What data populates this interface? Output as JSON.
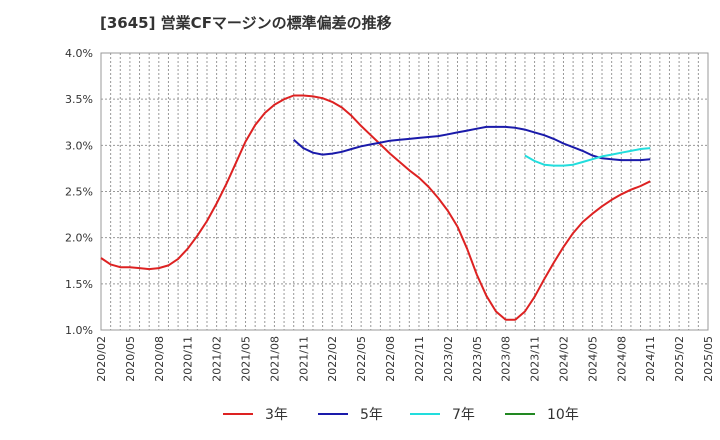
{
  "chart_data": {
    "type": "line",
    "title": "[3645]  営業CFマージンの標準偏差の推移",
    "xlabel": "",
    "ylabel": "",
    "ylim": [
      1.0,
      4.0
    ],
    "y_ticks": [
      "1.0%",
      "1.5%",
      "2.0%",
      "2.5%",
      "3.0%",
      "3.5%",
      "4.0%"
    ],
    "x_ticks": [
      "2020/02",
      "2020/05",
      "2020/08",
      "2020/11",
      "2021/02",
      "2021/05",
      "2021/08",
      "2021/11",
      "2022/02",
      "2022/05",
      "2022/08",
      "2022/11",
      "2023/02",
      "2023/05",
      "2023/08",
      "2023/11",
      "2024/02",
      "2024/05",
      "2024/08",
      "2024/11",
      "2025/02",
      "2025/05"
    ],
    "grid": true,
    "legend_position": "bottom",
    "series": [
      {
        "name": "3年",
        "color": "#dd2222",
        "points": [
          [
            "2020/02",
            1.78
          ],
          [
            "2020/03",
            1.71
          ],
          [
            "2020/04",
            1.68
          ],
          [
            "2020/05",
            1.68
          ],
          [
            "2020/06",
            1.67
          ],
          [
            "2020/07",
            1.66
          ],
          [
            "2020/08",
            1.67
          ],
          [
            "2020/09",
            1.7
          ],
          [
            "2020/10",
            1.77
          ],
          [
            "2020/11",
            1.88
          ],
          [
            "2020/12",
            2.02
          ],
          [
            "2021/01",
            2.18
          ],
          [
            "2021/02",
            2.37
          ],
          [
            "2021/03",
            2.58
          ],
          [
            "2021/04",
            2.81
          ],
          [
            "2021/05",
            3.04
          ],
          [
            "2021/06",
            3.22
          ],
          [
            "2021/07",
            3.35
          ],
          [
            "2021/08",
            3.44
          ],
          [
            "2021/09",
            3.5
          ],
          [
            "2021/10",
            3.54
          ],
          [
            "2021/11",
            3.54
          ],
          [
            "2021/12",
            3.53
          ],
          [
            "2022/01",
            3.51
          ],
          [
            "2022/02",
            3.47
          ],
          [
            "2022/03",
            3.41
          ],
          [
            "2022/04",
            3.32
          ],
          [
            "2022/05",
            3.21
          ],
          [
            "2022/06",
            3.11
          ],
          [
            "2022/07",
            3.01
          ],
          [
            "2022/08",
            2.91
          ],
          [
            "2022/09",
            2.82
          ],
          [
            "2022/10",
            2.73
          ],
          [
            "2022/11",
            2.65
          ],
          [
            "2022/12",
            2.55
          ],
          [
            "2023/01",
            2.43
          ],
          [
            "2023/02",
            2.29
          ],
          [
            "2023/03",
            2.12
          ],
          [
            "2023/04",
            1.88
          ],
          [
            "2023/05",
            1.6
          ],
          [
            "2023/06",
            1.37
          ],
          [
            "2023/07",
            1.2
          ],
          [
            "2023/08",
            1.11
          ],
          [
            "2023/09",
            1.11
          ],
          [
            "2023/10",
            1.2
          ],
          [
            "2023/11",
            1.36
          ],
          [
            "2023/12",
            1.55
          ],
          [
            "2024/01",
            1.73
          ],
          [
            "2024/02",
            1.9
          ],
          [
            "2024/03",
            2.05
          ],
          [
            "2024/04",
            2.17
          ],
          [
            "2024/05",
            2.26
          ],
          [
            "2024/06",
            2.34
          ],
          [
            "2024/07",
            2.41
          ],
          [
            "2024/08",
            2.47
          ],
          [
            "2024/09",
            2.52
          ],
          [
            "2024/10",
            2.56
          ],
          [
            "2024/11",
            2.61
          ]
        ]
      },
      {
        "name": "5年",
        "color": "#1a1aaa",
        "points": [
          [
            "2021/10",
            3.06
          ],
          [
            "2021/11",
            2.97
          ],
          [
            "2021/12",
            2.92
          ],
          [
            "2022/01",
            2.9
          ],
          [
            "2022/02",
            2.91
          ],
          [
            "2022/03",
            2.93
          ],
          [
            "2022/04",
            2.96
          ],
          [
            "2022/05",
            2.99
          ],
          [
            "2022/06",
            3.01
          ],
          [
            "2022/07",
            3.03
          ],
          [
            "2022/08",
            3.05
          ],
          [
            "2022/09",
            3.06
          ],
          [
            "2022/10",
            3.07
          ],
          [
            "2022/11",
            3.08
          ],
          [
            "2022/12",
            3.09
          ],
          [
            "2023/01",
            3.1
          ],
          [
            "2023/02",
            3.12
          ],
          [
            "2023/03",
            3.14
          ],
          [
            "2023/04",
            3.16
          ],
          [
            "2023/05",
            3.18
          ],
          [
            "2023/06",
            3.2
          ],
          [
            "2023/07",
            3.2
          ],
          [
            "2023/08",
            3.2
          ],
          [
            "2023/09",
            3.19
          ],
          [
            "2023/10",
            3.17
          ],
          [
            "2023/11",
            3.14
          ],
          [
            "2023/12",
            3.11
          ],
          [
            "2024/01",
            3.07
          ],
          [
            "2024/02",
            3.02
          ],
          [
            "2024/03",
            2.98
          ],
          [
            "2024/04",
            2.94
          ],
          [
            "2024/05",
            2.89
          ],
          [
            "2024/06",
            2.86
          ],
          [
            "2024/07",
            2.85
          ],
          [
            "2024/08",
            2.84
          ],
          [
            "2024/09",
            2.84
          ],
          [
            "2024/10",
            2.84
          ],
          [
            "2024/11",
            2.85
          ]
        ]
      },
      {
        "name": "7年",
        "color": "#22dddd",
        "points": [
          [
            "2023/10",
            2.89
          ],
          [
            "2023/11",
            2.83
          ],
          [
            "2023/12",
            2.79
          ],
          [
            "2024/01",
            2.78
          ],
          [
            "2024/02",
            2.78
          ],
          [
            "2024/03",
            2.79
          ],
          [
            "2024/04",
            2.82
          ],
          [
            "2024/05",
            2.85
          ],
          [
            "2024/06",
            2.88
          ],
          [
            "2024/07",
            2.9
          ],
          [
            "2024/08",
            2.92
          ],
          [
            "2024/09",
            2.94
          ],
          [
            "2024/10",
            2.96
          ],
          [
            "2024/11",
            2.97
          ]
        ]
      },
      {
        "name": "10年",
        "color": "#228822",
        "points": []
      }
    ]
  }
}
